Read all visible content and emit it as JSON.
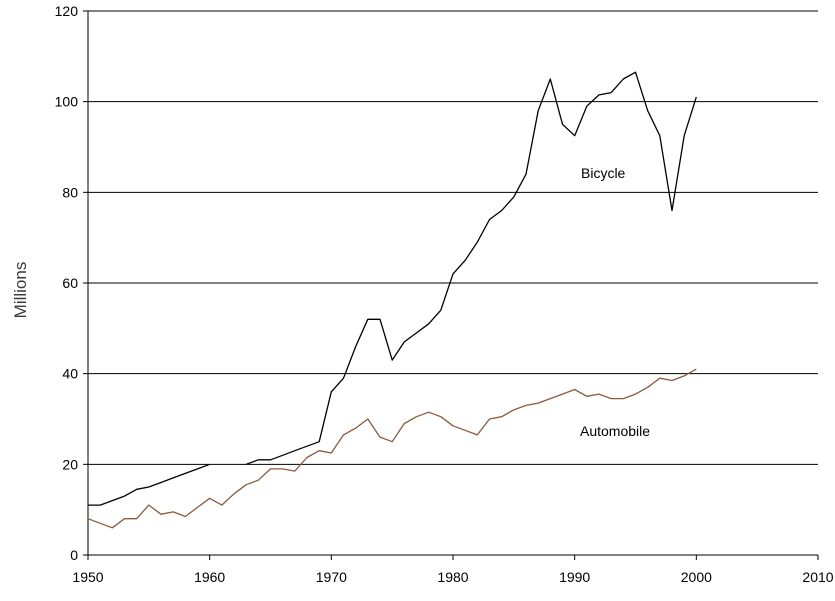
{
  "chart_data": {
    "type": "line",
    "title": "",
    "xlabel": "",
    "ylabel": "Millions",
    "xlim": [
      1950,
      2010
    ],
    "ylim": [
      0,
      120
    ],
    "x_ticks": [
      1950,
      1960,
      1970,
      1980,
      1990,
      2000,
      2010
    ],
    "y_ticks": [
      0,
      20,
      40,
      60,
      80,
      100,
      120
    ],
    "grid": "horizontal",
    "legend": "none",
    "series": [
      {
        "name": "Bicycle",
        "color": "#000000",
        "points": [
          [
            1950,
            11
          ],
          [
            1951,
            11
          ],
          [
            1952,
            12
          ],
          [
            1953,
            13
          ],
          [
            1954,
            14.5
          ],
          [
            1955,
            15
          ],
          [
            1956,
            16
          ],
          [
            1957,
            17
          ],
          [
            1958,
            18
          ],
          [
            1959,
            19
          ],
          [
            1960,
            20
          ],
          [
            1963,
            20
          ],
          [
            1964,
            21
          ],
          [
            1965,
            21
          ],
          [
            1966,
            22
          ],
          [
            1967,
            23
          ],
          [
            1968,
            24
          ],
          [
            1969,
            25
          ],
          [
            1970,
            36
          ],
          [
            1971,
            39
          ],
          [
            1972,
            46
          ],
          [
            1973,
            52
          ],
          [
            1974,
            52
          ],
          [
            1975,
            43
          ],
          [
            1976,
            47
          ],
          [
            1977,
            49
          ],
          [
            1978,
            51
          ],
          [
            1979,
            54
          ],
          [
            1980,
            62
          ],
          [
            1981,
            65
          ],
          [
            1982,
            69
          ],
          [
            1983,
            74
          ],
          [
            1984,
            76
          ],
          [
            1985,
            79
          ],
          [
            1986,
            84
          ],
          [
            1987,
            98
          ],
          [
            1988,
            105
          ],
          [
            1989,
            95
          ],
          [
            1990,
            92.5
          ],
          [
            1991,
            99
          ],
          [
            1992,
            101.5
          ],
          [
            1993,
            102
          ],
          [
            1994,
            105
          ],
          [
            1995,
            106.5
          ],
          [
            1996,
            98
          ],
          [
            1997,
            92.5
          ],
          [
            1998,
            76
          ],
          [
            1999,
            92.5
          ],
          [
            2000,
            101
          ]
        ]
      },
      {
        "name": "Automobile",
        "color": "#8b5a3c",
        "points": [
          [
            1950,
            8
          ],
          [
            1951,
            7
          ],
          [
            1952,
            6
          ],
          [
            1953,
            8
          ],
          [
            1954,
            8
          ],
          [
            1955,
            11
          ],
          [
            1956,
            9
          ],
          [
            1957,
            9.5
          ],
          [
            1958,
            8.5
          ],
          [
            1959,
            10.5
          ],
          [
            1960,
            12.5
          ],
          [
            1961,
            11
          ],
          [
            1962,
            13.5
          ],
          [
            1963,
            15.5
          ],
          [
            1964,
            16.5
          ],
          [
            1965,
            19
          ],
          [
            1966,
            19
          ],
          [
            1967,
            18.5
          ],
          [
            1968,
            21.5
          ],
          [
            1969,
            23
          ],
          [
            1970,
            22.5
          ],
          [
            1971,
            26.5
          ],
          [
            1972,
            28
          ],
          [
            1973,
            30
          ],
          [
            1974,
            26
          ],
          [
            1975,
            25
          ],
          [
            1976,
            29
          ],
          [
            1977,
            30.5
          ],
          [
            1978,
            31.5
          ],
          [
            1979,
            30.5
          ],
          [
            1980,
            28.5
          ],
          [
            1981,
            27.5
          ],
          [
            1982,
            26.5
          ],
          [
            1983,
            30
          ],
          [
            1984,
            30.5
          ],
          [
            1985,
            32
          ],
          [
            1986,
            33
          ],
          [
            1987,
            33.5
          ],
          [
            1988,
            34.5
          ],
          [
            1989,
            35.5
          ],
          [
            1990,
            36.5
          ],
          [
            1991,
            35
          ],
          [
            1992,
            35.5
          ],
          [
            1993,
            34.5
          ],
          [
            1994,
            34.5
          ],
          [
            1995,
            35.5
          ],
          [
            1996,
            37
          ],
          [
            1997,
            39
          ],
          [
            1998,
            38.5
          ],
          [
            1999,
            39.5
          ],
          [
            2000,
            41
          ]
        ]
      }
    ]
  }
}
